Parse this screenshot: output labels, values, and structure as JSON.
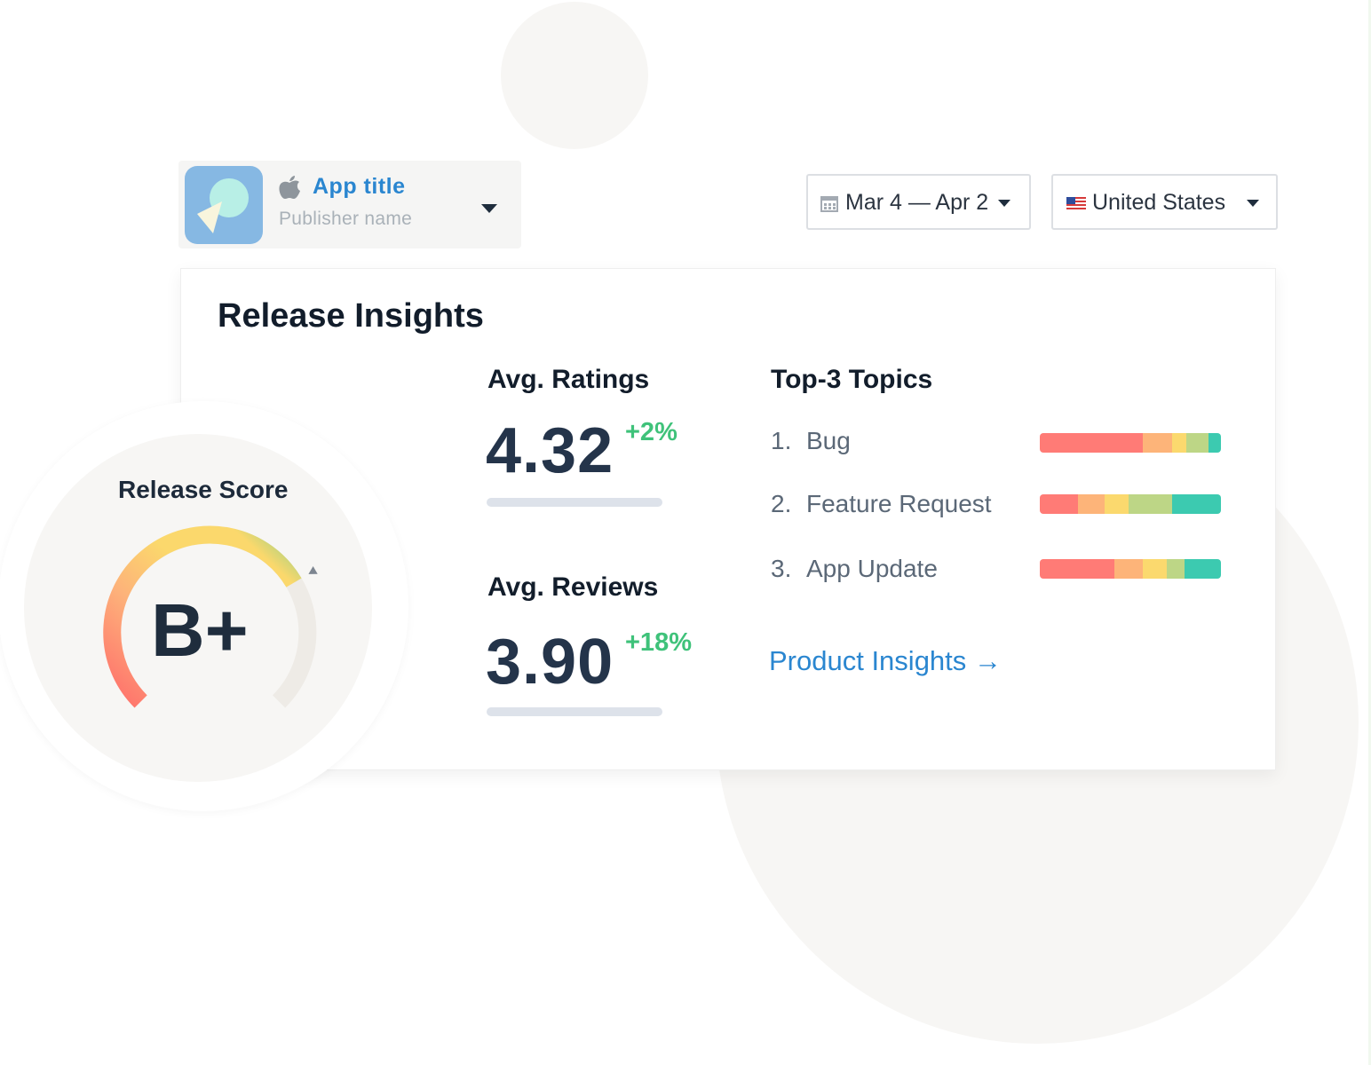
{
  "app": {
    "title": "App title",
    "publisher": "Publisher name",
    "platform_icon": "apple-icon"
  },
  "filters": {
    "date_range": "Mar 4 — Apr 2",
    "country": "United States"
  },
  "card": {
    "title": "Release Insights"
  },
  "metrics": {
    "ratings": {
      "label": "Avg. Ratings",
      "value": "4.32",
      "delta": "+2%"
    },
    "reviews": {
      "label": "Avg. Reviews",
      "value": "3.90",
      "delta": "+18%"
    }
  },
  "topics": {
    "label": "Top-3 Topics",
    "items": [
      {
        "num": "1.",
        "name": "Bug",
        "segments": [
          0.57,
          0.16,
          0.08,
          0.12,
          0.07
        ]
      },
      {
        "num": "2.",
        "name": "Feature Request",
        "segments": [
          0.21,
          0.15,
          0.13,
          0.24,
          0.27
        ]
      },
      {
        "num": "3.",
        "name": "App Update",
        "segments": [
          0.41,
          0.16,
          0.13,
          0.1,
          0.2
        ]
      }
    ],
    "segment_colors": [
      "#ff7b76",
      "#fdb479",
      "#fbd96e",
      "#bdd686",
      "#3ccab0"
    ]
  },
  "product_link": "Product Insights →",
  "release_score": {
    "label": "Release Score",
    "grade": "B+",
    "level": 0.72
  },
  "colors": {
    "accent": "#2a86d0",
    "positive": "#3fc27a",
    "heading": "#121d2b"
  }
}
